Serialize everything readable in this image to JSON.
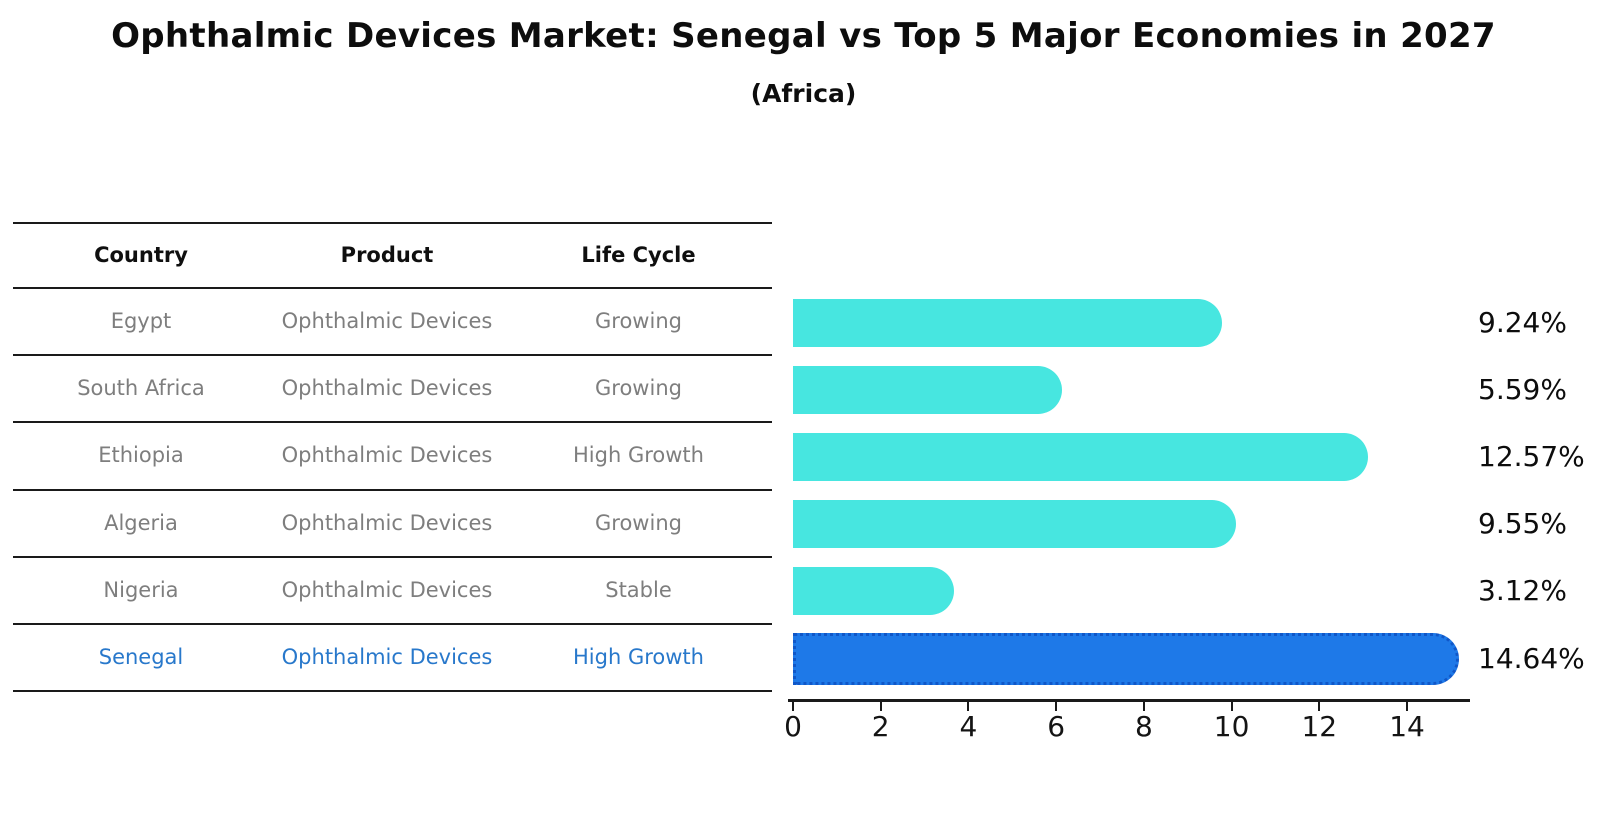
{
  "title": "Ophthalmic Devices Market: Senegal vs Top 5 Major Economies in 2027",
  "subtitle": "(Africa)",
  "table": {
    "headers": [
      "Country",
      "Product",
      "Life Cycle"
    ],
    "rows": [
      {
        "country": "Egypt",
        "product": "Ophthalmic Devices",
        "life_cycle": "Growing",
        "highlight": false
      },
      {
        "country": "South Africa",
        "product": "Ophthalmic Devices",
        "life_cycle": "Growing",
        "highlight": false
      },
      {
        "country": "Ethiopia",
        "product": "Ophthalmic Devices",
        "life_cycle": "High Growth",
        "highlight": false
      },
      {
        "country": "Algeria",
        "product": "Ophthalmic Devices",
        "life_cycle": "Growing",
        "highlight": false
      },
      {
        "country": "Nigeria",
        "product": "Ophthalmic Devices",
        "life_cycle": "Stable",
        "highlight": false
      },
      {
        "country": "Senegal",
        "product": "Ophthalmic Devices",
        "life_cycle": "High Growth",
        "highlight": true
      }
    ]
  },
  "chart_data": {
    "type": "bar",
    "orientation": "horizontal",
    "categories": [
      "Egypt",
      "South Africa",
      "Ethiopia",
      "Algeria",
      "Nigeria",
      "Senegal"
    ],
    "values": [
      9.24,
      5.59,
      12.57,
      9.55,
      3.12,
      14.64
    ],
    "value_labels": [
      "9.24%",
      "5.59%",
      "12.57%",
      "9.55%",
      "3.12%",
      "14.64%"
    ],
    "title": "Ophthalmic Devices Market: Senegal vs Top 5 Major Economies in 2027 (Africa)",
    "xlabel": "",
    "ylabel": "",
    "xlim": [
      0,
      15.4
    ],
    "x_ticks": [
      0,
      2,
      4,
      6,
      8,
      10,
      12,
      14
    ],
    "grid": false,
    "legend": false,
    "bar_color": "#47E6E0",
    "highlight_index": 5,
    "highlight_color": "#1E79E8",
    "highlight_border_color": "#1057C8",
    "highlight_text_color": "#2878CB"
  }
}
